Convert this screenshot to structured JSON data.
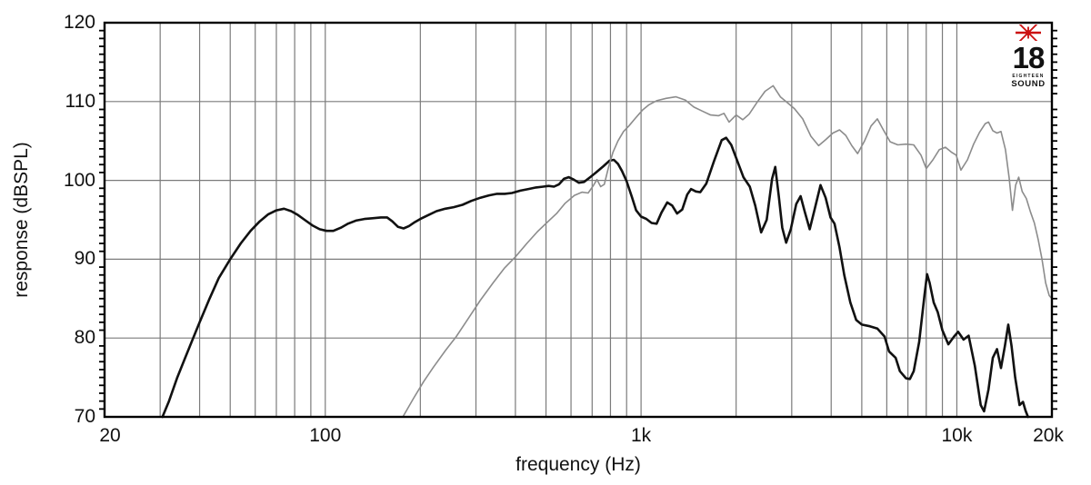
{
  "logo": {
    "number": "18",
    "line1": "EIGHTEEN",
    "line2": "SOUND",
    "star_color": "#cc1111",
    "text_color": "#111111"
  },
  "chart_data": {
    "type": "line",
    "title": "",
    "xlabel": "frequency (Hz)",
    "ylabel": "response (dBSPL)",
    "x_scale": "log",
    "xlim": [
      20,
      20000
    ],
    "ylim": [
      70,
      120
    ],
    "grid": true,
    "legend": "none",
    "background": "#ffffff",
    "frame_color": "#000000",
    "grid_color": "#7b7b7b",
    "tick_color": "#000000",
    "x_tick_labels": [
      {
        "f": 20,
        "label": "20"
      },
      {
        "f": 100,
        "label": "100"
      },
      {
        "f": 1000,
        "label": "1k"
      },
      {
        "f": 10000,
        "label": "10k"
      },
      {
        "f": 20000,
        "label": "20k"
      }
    ],
    "y_tick_labels": [
      {
        "db": 70,
        "label": "70"
      },
      {
        "db": 80,
        "label": "80"
      },
      {
        "db": 90,
        "label": "90"
      },
      {
        "db": 100,
        "label": "100"
      },
      {
        "db": 110,
        "label": "110"
      },
      {
        "db": 120,
        "label": "120"
      }
    ],
    "x_gridlines": [
      30,
      40,
      50,
      60,
      70,
      80,
      90,
      100,
      200,
      300,
      400,
      500,
      600,
      700,
      800,
      900,
      1000,
      2000,
      3000,
      4000,
      5000,
      6000,
      7000,
      8000,
      9000,
      10000
    ],
    "y_gridlines": [
      80,
      90,
      100,
      110
    ],
    "y_minor_tick_step": 1,
    "series": [
      {
        "name": "black-curve",
        "color": "#111111",
        "stroke_width": 2.6,
        "points": [
          [
            30.5,
            70
          ],
          [
            32,
            72
          ],
          [
            34,
            75
          ],
          [
            36,
            77.5
          ],
          [
            38,
            79.8
          ],
          [
            40,
            82
          ],
          [
            43,
            85
          ],
          [
            46,
            87.6
          ],
          [
            50,
            90
          ],
          [
            54,
            92
          ],
          [
            58,
            93.6
          ],
          [
            62,
            94.8
          ],
          [
            66,
            95.7
          ],
          [
            70,
            96.2
          ],
          [
            74,
            96.4
          ],
          [
            78,
            96.1
          ],
          [
            82,
            95.6
          ],
          [
            86,
            95
          ],
          [
            91,
            94.3
          ],
          [
            96,
            93.8
          ],
          [
            101,
            93.6
          ],
          [
            106,
            93.6
          ],
          [
            112,
            94
          ],
          [
            118,
            94.5
          ],
          [
            125,
            94.9
          ],
          [
            133,
            95.1
          ],
          [
            141,
            95.2
          ],
          [
            150,
            95.3
          ],
          [
            157,
            95.3
          ],
          [
            163,
            94.8
          ],
          [
            170,
            94.1
          ],
          [
            177,
            93.9
          ],
          [
            184,
            94.2
          ],
          [
            192,
            94.7
          ],
          [
            200,
            95.1
          ],
          [
            212,
            95.6
          ],
          [
            225,
            96.1
          ],
          [
            240,
            96.4
          ],
          [
            255,
            96.6
          ],
          [
            272,
            96.9
          ],
          [
            290,
            97.4
          ],
          [
            310,
            97.8
          ],
          [
            330,
            98.1
          ],
          [
            350,
            98.3
          ],
          [
            370,
            98.3
          ],
          [
            390,
            98.4
          ],
          [
            415,
            98.7
          ],
          [
            440,
            98.9
          ],
          [
            465,
            99.1
          ],
          [
            490,
            99.2
          ],
          [
            510,
            99.3
          ],
          [
            530,
            99.2
          ],
          [
            550,
            99.5
          ],
          [
            570,
            100.2
          ],
          [
            590,
            100.4
          ],
          [
            612,
            100.1
          ],
          [
            635,
            99.7
          ],
          [
            660,
            99.8
          ],
          [
            690,
            100.4
          ],
          [
            720,
            101
          ],
          [
            760,
            101.8
          ],
          [
            795,
            102.5
          ],
          [
            820,
            102.6
          ],
          [
            845,
            102.1
          ],
          [
            870,
            101.2
          ],
          [
            900,
            99.9
          ],
          [
            935,
            97.9
          ],
          [
            965,
            96.2
          ],
          [
            1000,
            95.4
          ],
          [
            1040,
            95.1
          ],
          [
            1080,
            94.6
          ],
          [
            1120,
            94.5
          ],
          [
            1160,
            95.9
          ],
          [
            1210,
            97.2
          ],
          [
            1255,
            96.8
          ],
          [
            1300,
            95.8
          ],
          [
            1350,
            96.3
          ],
          [
            1400,
            98.2
          ],
          [
            1440,
            98.9
          ],
          [
            1490,
            98.6
          ],
          [
            1540,
            98.5
          ],
          [
            1610,
            99.6
          ],
          [
            1700,
            102.4
          ],
          [
            1800,
            105.1
          ],
          [
            1860,
            105.4
          ],
          [
            1930,
            104.5
          ],
          [
            2020,
            102.4
          ],
          [
            2110,
            100.4
          ],
          [
            2210,
            99.2
          ],
          [
            2300,
            96.8
          ],
          [
            2400,
            93.4
          ],
          [
            2500,
            95
          ],
          [
            2600,
            100.2
          ],
          [
            2660,
            101.7
          ],
          [
            2730,
            98
          ],
          [
            2800,
            94
          ],
          [
            2880,
            92.1
          ],
          [
            2980,
            93.8
          ],
          [
            3100,
            97
          ],
          [
            3200,
            98
          ],
          [
            3300,
            96
          ],
          [
            3420,
            93.8
          ],
          [
            3550,
            96.4
          ],
          [
            3700,
            99.4
          ],
          [
            3840,
            97.8
          ],
          [
            3980,
            95.3
          ],
          [
            4100,
            94.5
          ],
          [
            4250,
            91.5
          ],
          [
            4400,
            88
          ],
          [
            4600,
            84.5
          ],
          [
            4800,
            82.3
          ],
          [
            5000,
            81.7
          ],
          [
            5300,
            81.5
          ],
          [
            5600,
            81.2
          ],
          [
            5900,
            80.2
          ],
          [
            6100,
            78.3
          ],
          [
            6400,
            77.5
          ],
          [
            6600,
            75.8
          ],
          [
            6900,
            74.9
          ],
          [
            7100,
            74.8
          ],
          [
            7300,
            75.8
          ],
          [
            7600,
            79.5
          ],
          [
            7900,
            85.5
          ],
          [
            8050,
            88.1
          ],
          [
            8200,
            87
          ],
          [
            8450,
            84.5
          ],
          [
            8700,
            83.3
          ],
          [
            9000,
            81
          ],
          [
            9400,
            79.2
          ],
          [
            9800,
            80.2
          ],
          [
            10100,
            80.8
          ],
          [
            10500,
            79.8
          ],
          [
            10900,
            80.3
          ],
          [
            11400,
            76.5
          ],
          [
            11900,
            71.5
          ],
          [
            12200,
            70.7
          ],
          [
            12600,
            73.5
          ],
          [
            13000,
            77.5
          ],
          [
            13400,
            78.6
          ],
          [
            13800,
            76.2
          ],
          [
            14200,
            79
          ],
          [
            14550,
            81.7
          ],
          [
            14900,
            79
          ],
          [
            15300,
            75
          ],
          [
            15800,
            71.5
          ],
          [
            16200,
            71.9
          ],
          [
            16500,
            70.8
          ],
          [
            16800,
            70
          ]
        ]
      },
      {
        "name": "gray-curve",
        "color": "#8c8c8c",
        "stroke_width": 1.6,
        "points": [
          [
            176,
            70
          ],
          [
            190,
            72.3
          ],
          [
            205,
            74.5
          ],
          [
            220,
            76.3
          ],
          [
            240,
            78.4
          ],
          [
            260,
            80.2
          ],
          [
            285,
            82.6
          ],
          [
            310,
            84.8
          ],
          [
            340,
            87
          ],
          [
            370,
            88.9
          ],
          [
            400,
            90.3
          ],
          [
            435,
            92
          ],
          [
            470,
            93.5
          ],
          [
            505,
            94.7
          ],
          [
            540,
            95.8
          ],
          [
            575,
            97.1
          ],
          [
            615,
            98.1
          ],
          [
            650,
            98.5
          ],
          [
            680,
            98.4
          ],
          [
            705,
            99.3
          ],
          [
            725,
            100.1
          ],
          [
            745,
            99.2
          ],
          [
            765,
            99.5
          ],
          [
            790,
            101.8
          ],
          [
            815,
            103.6
          ],
          [
            845,
            105
          ],
          [
            880,
            106.2
          ],
          [
            915,
            106.9
          ],
          [
            960,
            107.9
          ],
          [
            1010,
            108.9
          ],
          [
            1060,
            109.6
          ],
          [
            1120,
            110.1
          ],
          [
            1200,
            110.4
          ],
          [
            1290,
            110.6
          ],
          [
            1380,
            110.2
          ],
          [
            1470,
            109.3
          ],
          [
            1560,
            108.8
          ],
          [
            1660,
            108.3
          ],
          [
            1760,
            108.2
          ],
          [
            1830,
            108.5
          ],
          [
            1900,
            107.4
          ],
          [
            2000,
            108.3
          ],
          [
            2100,
            107.7
          ],
          [
            2200,
            108.4
          ],
          [
            2330,
            109.9
          ],
          [
            2470,
            111.3
          ],
          [
            2620,
            112
          ],
          [
            2760,
            110.6
          ],
          [
            2900,
            109.9
          ],
          [
            3060,
            109.1
          ],
          [
            3250,
            107.8
          ],
          [
            3450,
            105.6
          ],
          [
            3650,
            104.4
          ],
          [
            3850,
            105.2
          ],
          [
            4050,
            106
          ],
          [
            4250,
            106.4
          ],
          [
            4450,
            105.7
          ],
          [
            4650,
            104.4
          ],
          [
            4850,
            103.4
          ],
          [
            5100,
            105
          ],
          [
            5350,
            106.9
          ],
          [
            5600,
            107.8
          ],
          [
            5850,
            106.4
          ],
          [
            6150,
            104.9
          ],
          [
            6500,
            104.5
          ],
          [
            6900,
            104.6
          ],
          [
            7300,
            104.5
          ],
          [
            7700,
            103.2
          ],
          [
            8000,
            101.5
          ],
          [
            8400,
            102.6
          ],
          [
            8800,
            103.9
          ],
          [
            9200,
            104.2
          ],
          [
            9600,
            103.6
          ],
          [
            9950,
            103.2
          ],
          [
            10300,
            101.3
          ],
          [
            10800,
            102.6
          ],
          [
            11300,
            104.6
          ],
          [
            11800,
            106.1
          ],
          [
            12300,
            107.2
          ],
          [
            12600,
            107.4
          ],
          [
            13000,
            106.3
          ],
          [
            13400,
            106
          ],
          [
            13800,
            106.2
          ],
          [
            14250,
            103.9
          ],
          [
            14650,
            100.3
          ],
          [
            15000,
            96.2
          ],
          [
            15350,
            99.4
          ],
          [
            15700,
            100.4
          ],
          [
            16100,
            98.6
          ],
          [
            16600,
            97.7
          ],
          [
            17100,
            96
          ],
          [
            17600,
            94.6
          ],
          [
            18100,
            92.5
          ],
          [
            18600,
            90
          ],
          [
            19100,
            87
          ],
          [
            19600,
            85.4
          ],
          [
            20000,
            85
          ]
        ]
      }
    ]
  }
}
